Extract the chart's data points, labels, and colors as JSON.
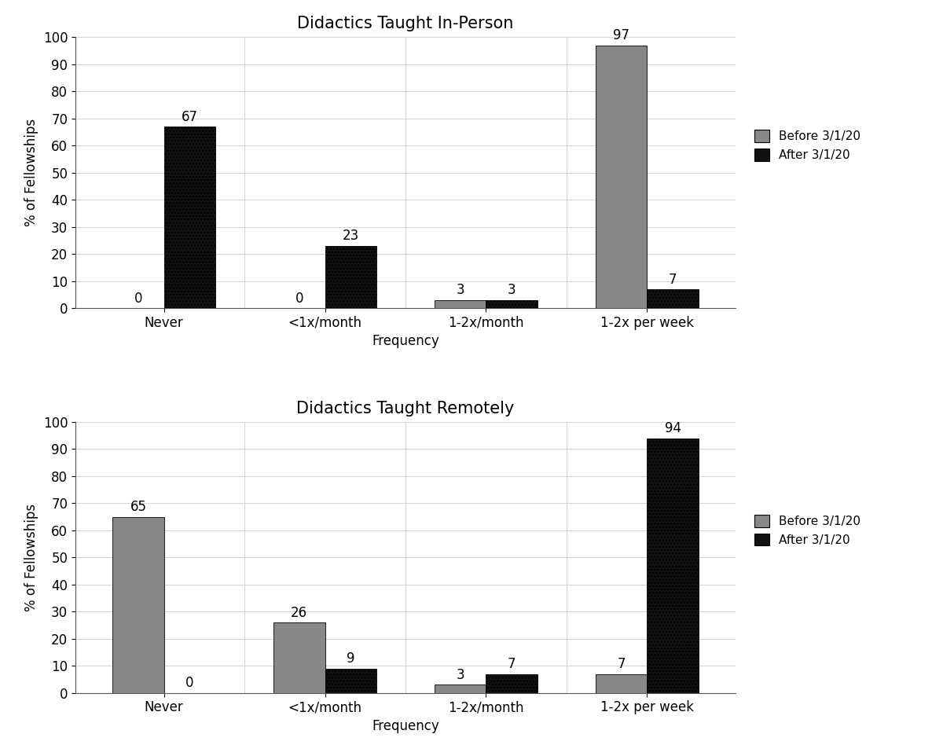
{
  "chart1": {
    "title": "Didactics Taught In-Person",
    "categories": [
      "Never",
      "<1x/month",
      "1-2x/month",
      "1-2x per week"
    ],
    "before": [
      0,
      0,
      3,
      97
    ],
    "after": [
      67,
      23,
      3,
      7
    ],
    "ylabel": "% of Fellowships",
    "xlabel": "Frequency",
    "ylim": [
      0,
      100
    ],
    "yticks": [
      0,
      10,
      20,
      30,
      40,
      50,
      60,
      70,
      80,
      90,
      100
    ]
  },
  "chart2": {
    "title": "Didactics Taught Remotely",
    "categories": [
      "Never",
      "<1x/month",
      "1-2x/month",
      "1-2x per week"
    ],
    "before": [
      65,
      26,
      3,
      7
    ],
    "after": [
      0,
      9,
      7,
      94
    ],
    "ylabel": "% of Fellowships",
    "xlabel": "Frequency",
    "ylim": [
      0,
      100
    ],
    "yticks": [
      0,
      10,
      20,
      30,
      40,
      50,
      60,
      70,
      80,
      90,
      100
    ]
  },
  "color_before": "#888888",
  "color_after": "#111111",
  "legend_labels": [
    "Before 3/1/20",
    "After 3/1/20"
  ],
  "bar_width": 0.32,
  "title_fontsize": 15,
  "label_fontsize": 12,
  "tick_fontsize": 12,
  "annotation_fontsize": 12,
  "legend_fontsize": 11
}
